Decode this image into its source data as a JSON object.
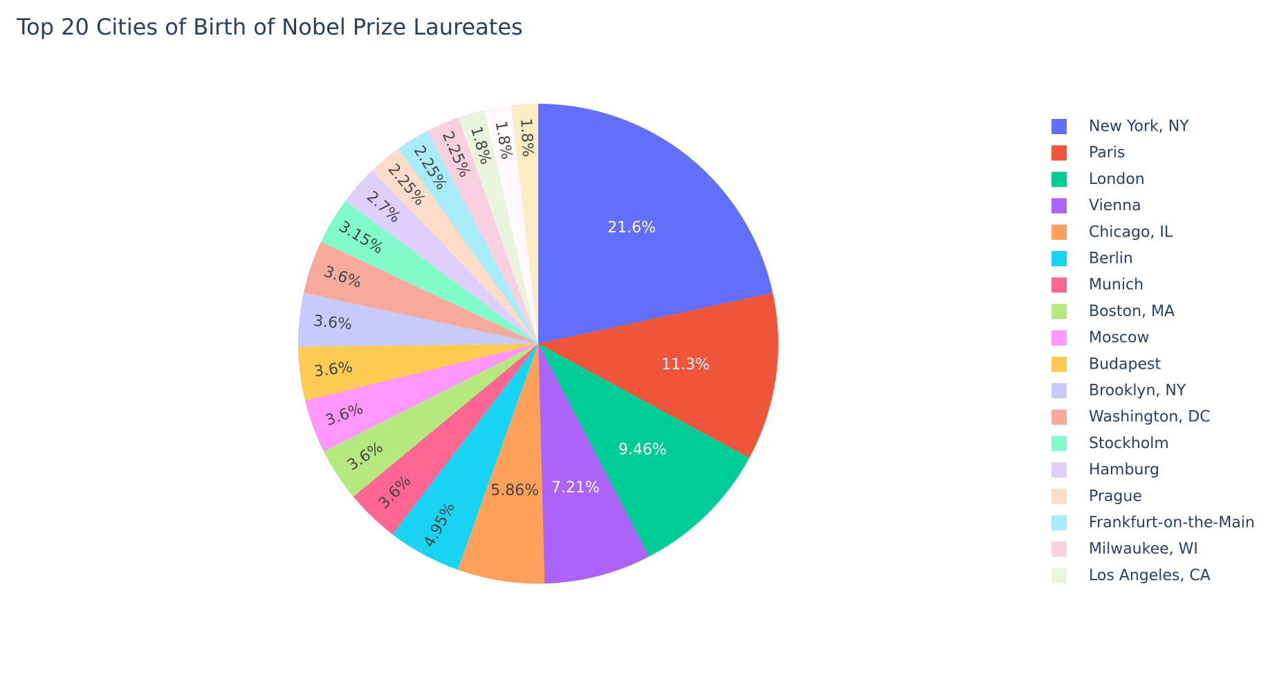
{
  "chart_data": {
    "type": "pie",
    "title": "Top 20 Cities of Birth of Nobel Prize Laureates",
    "legend_position": "right",
    "slices": [
      {
        "label": "New York, NY",
        "percent": 21.6,
        "text": "21.6%",
        "color": "#636efa"
      },
      {
        "label": "Paris",
        "percent": 11.3,
        "text": "11.3%",
        "color": "#EF553B"
      },
      {
        "label": "London",
        "percent": 9.46,
        "text": "9.46%",
        "color": "#00cc96"
      },
      {
        "label": "Vienna",
        "percent": 7.21,
        "text": "7.21%",
        "color": "#ab63fa"
      },
      {
        "label": "Chicago, IL",
        "percent": 5.86,
        "text": "5.86%",
        "color": "#FFA15A"
      },
      {
        "label": "Berlin",
        "percent": 4.95,
        "text": "4.95%",
        "color": "#19d3f3"
      },
      {
        "label": "Munich",
        "percent": 3.6,
        "text": "3.6%",
        "color": "#FF6692"
      },
      {
        "label": "Boston, MA",
        "percent": 3.6,
        "text": "3.6%",
        "color": "#B6E880"
      },
      {
        "label": "Moscow",
        "percent": 3.6,
        "text": "3.6%",
        "color": "#FF97FF"
      },
      {
        "label": "Budapest",
        "percent": 3.6,
        "text": "3.6%",
        "color": "#FECB52"
      },
      {
        "label": "Brooklyn, NY",
        "percent": 3.6,
        "text": "3.6%",
        "color": "#C6CAFD"
      },
      {
        "label": "Washington, DC",
        "percent": 3.6,
        "text": "3.6%",
        "color": "#F6AA9C"
      },
      {
        "label": "Stockholm",
        "percent": 3.15,
        "text": "3.15%",
        "color": "#82FBCB"
      },
      {
        "label": "Hamburg",
        "percent": 2.7,
        "text": "2.7%",
        "color": "#DDCEFA"
      },
      {
        "label": "Prague",
        "percent": 2.25,
        "text": "2.25%",
        "color": "#FADCC9"
      },
      {
        "label": "Frankfurt-on-the-Main",
        "percent": 2.25,
        "text": "2.25%",
        "color": "#A8EBF9"
      },
      {
        "label": "Milwaukee, WI",
        "percent": 2.25,
        "text": "2.25%",
        "color": "#F8D0DF"
      },
      {
        "label": "Los Angeles, CA",
        "percent": 1.8,
        "text": "1.8%",
        "color": "#E8F5DC"
      },
      {
        "label": "",
        "percent": 1.8,
        "text": "1.8%",
        "color": "#FFF8FC"
      },
      {
        "label": "",
        "percent": 1.8,
        "text": "1.8%",
        "color": "#FBECC4"
      }
    ]
  }
}
